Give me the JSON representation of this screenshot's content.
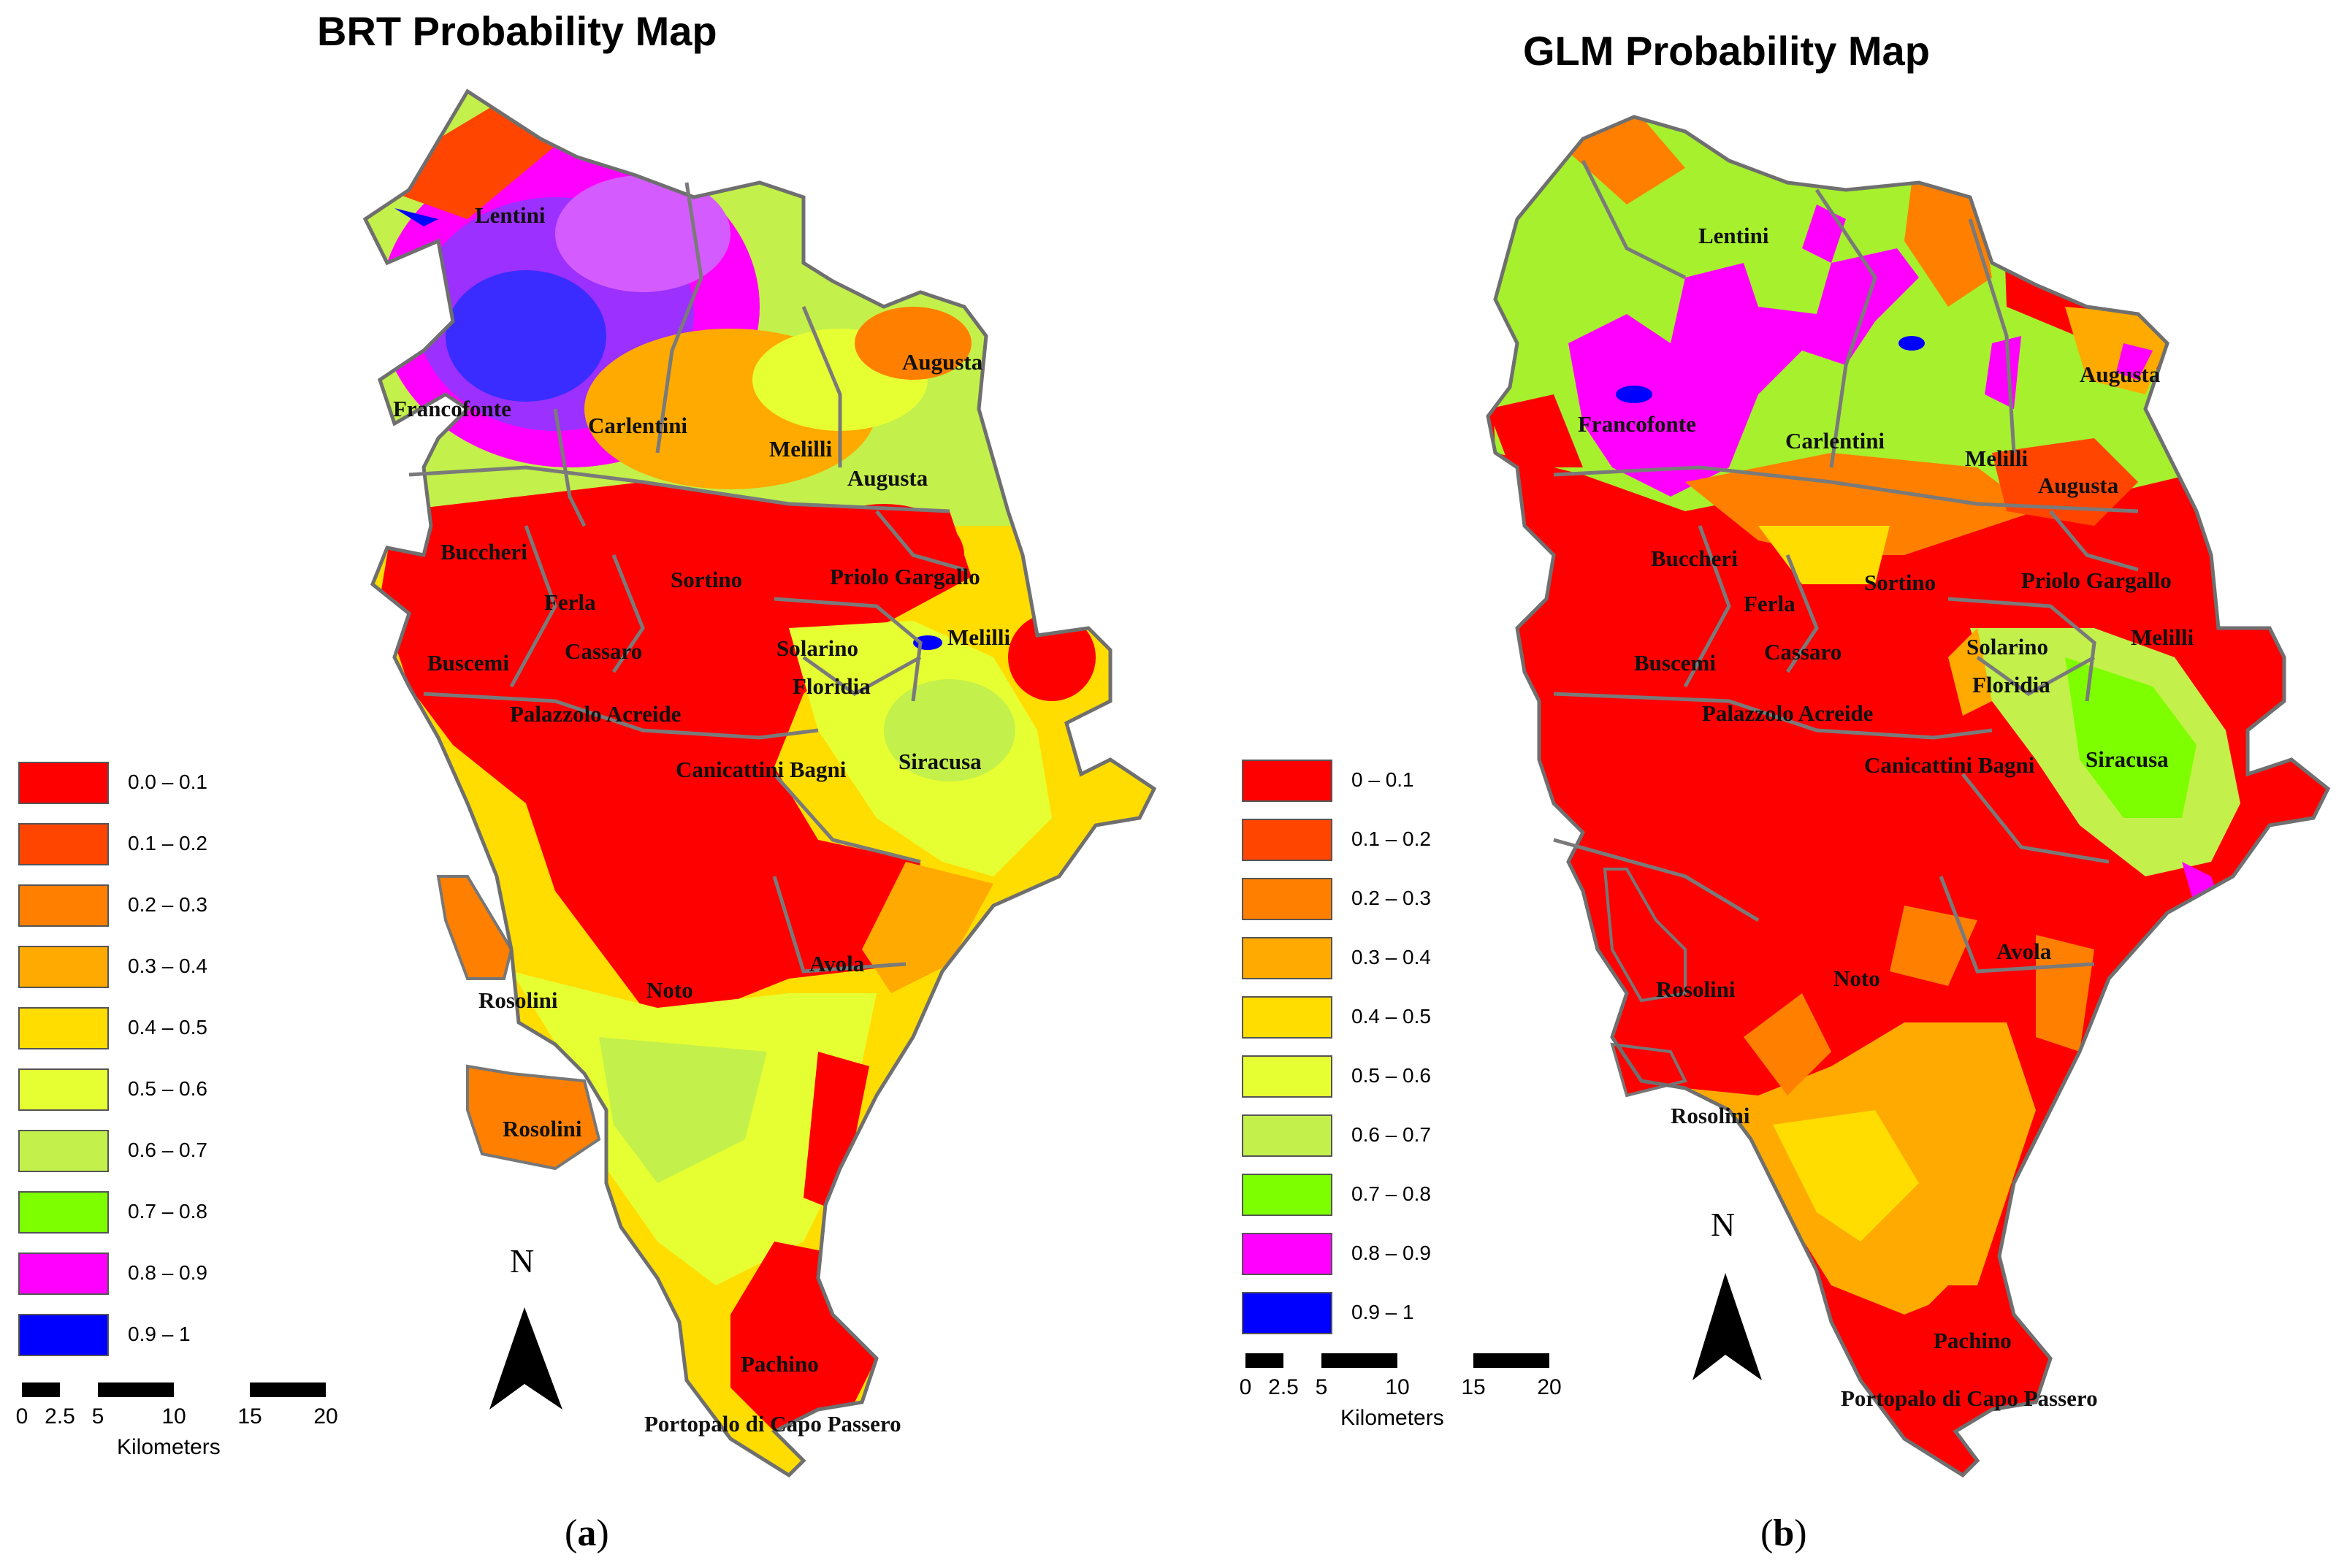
{
  "figure": {
    "panel_a": {
      "title": "BRT Probability Map",
      "caption_open": "(",
      "caption_letter": "a",
      "caption_close": ")"
    },
    "panel_b": {
      "title": "GLM Probability Map",
      "caption_open": "(",
      "caption_letter": "b",
      "caption_close": ")"
    }
  },
  "legend_a": [
    {
      "label": "0.0 – 0.1",
      "color": "#ff0000"
    },
    {
      "label": "0.1 – 0.2",
      "color": "#ff4500"
    },
    {
      "label": "0.2 – 0.3",
      "color": "#ff8000"
    },
    {
      "label": "0.3 – 0.4",
      "color": "#ffaa00"
    },
    {
      "label": "0.4 – 0.5",
      "color": "#ffdd00"
    },
    {
      "label": "0.5 – 0.6",
      "color": "#e6ff33"
    },
    {
      "label": "0.6 – 0.7",
      "color": "#c3f04a"
    },
    {
      "label": "0.7 – 0.8",
      "color": "#7dff00"
    },
    {
      "label": "0.8 – 0.9",
      "color": "#ff00ff"
    },
    {
      "label": "0.9 – 1",
      "color": "#0000ff"
    }
  ],
  "legend_b": [
    {
      "label": "0 – 0.1",
      "color": "#ff0000"
    },
    {
      "label": "0.1 – 0.2",
      "color": "#ff4500"
    },
    {
      "label": "0.2 – 0.3",
      "color": "#ff8000"
    },
    {
      "label": "0.3 – 0.4",
      "color": "#ffaa00"
    },
    {
      "label": "0.4 – 0.5",
      "color": "#ffdd00"
    },
    {
      "label": "0.5 – 0.6",
      "color": "#e6ff33"
    },
    {
      "label": "0.6 – 0.7",
      "color": "#c3f04a"
    },
    {
      "label": "0.7 – 0.8",
      "color": "#7dff00"
    },
    {
      "label": "0.8 – 0.9",
      "color": "#ff00ff"
    },
    {
      "label": "0.9 – 1",
      "color": "#0000ff"
    }
  ],
  "scale": {
    "ticks": [
      "0",
      "2.5",
      "5",
      "10",
      "15",
      "20"
    ],
    "unit": "Kilometers"
  },
  "north_arrow": {
    "label": "N"
  },
  "towns_a": [
    "Lentini",
    "Francofonte",
    "Carlentini",
    "Augusta",
    "Melilli",
    "Augusta",
    "Buccheri",
    "Sortino",
    "Priolo Gargallo",
    "Ferla",
    "Buscemi",
    "Cassaro",
    "Solarino",
    "Melilli",
    "Floridia",
    "Palazzolo Acreide",
    "Canicattini Bagni",
    "Siracusa",
    "Rosolini",
    "Noto",
    "Avola",
    "Rosolini",
    "Pachino",
    "Portopalo di Capo Passero"
  ],
  "towns_b": [
    "Lentini",
    "Francofonte",
    "Carlentini",
    "Augusta",
    "Melilli",
    "Augusta",
    "Buccheri",
    "Sortino",
    "Priolo Gargallo",
    "Ferla",
    "Buscemi",
    "Cassaro",
    "Solarino",
    "Melilli",
    "Floridia",
    "Palazzolo Acreide",
    "Canicattini Bagni",
    "Siracusa",
    "Rosolini",
    "Noto",
    "Avola",
    "Rosolini",
    "Pachino",
    "Portopalo di Capo Passero"
  ]
}
